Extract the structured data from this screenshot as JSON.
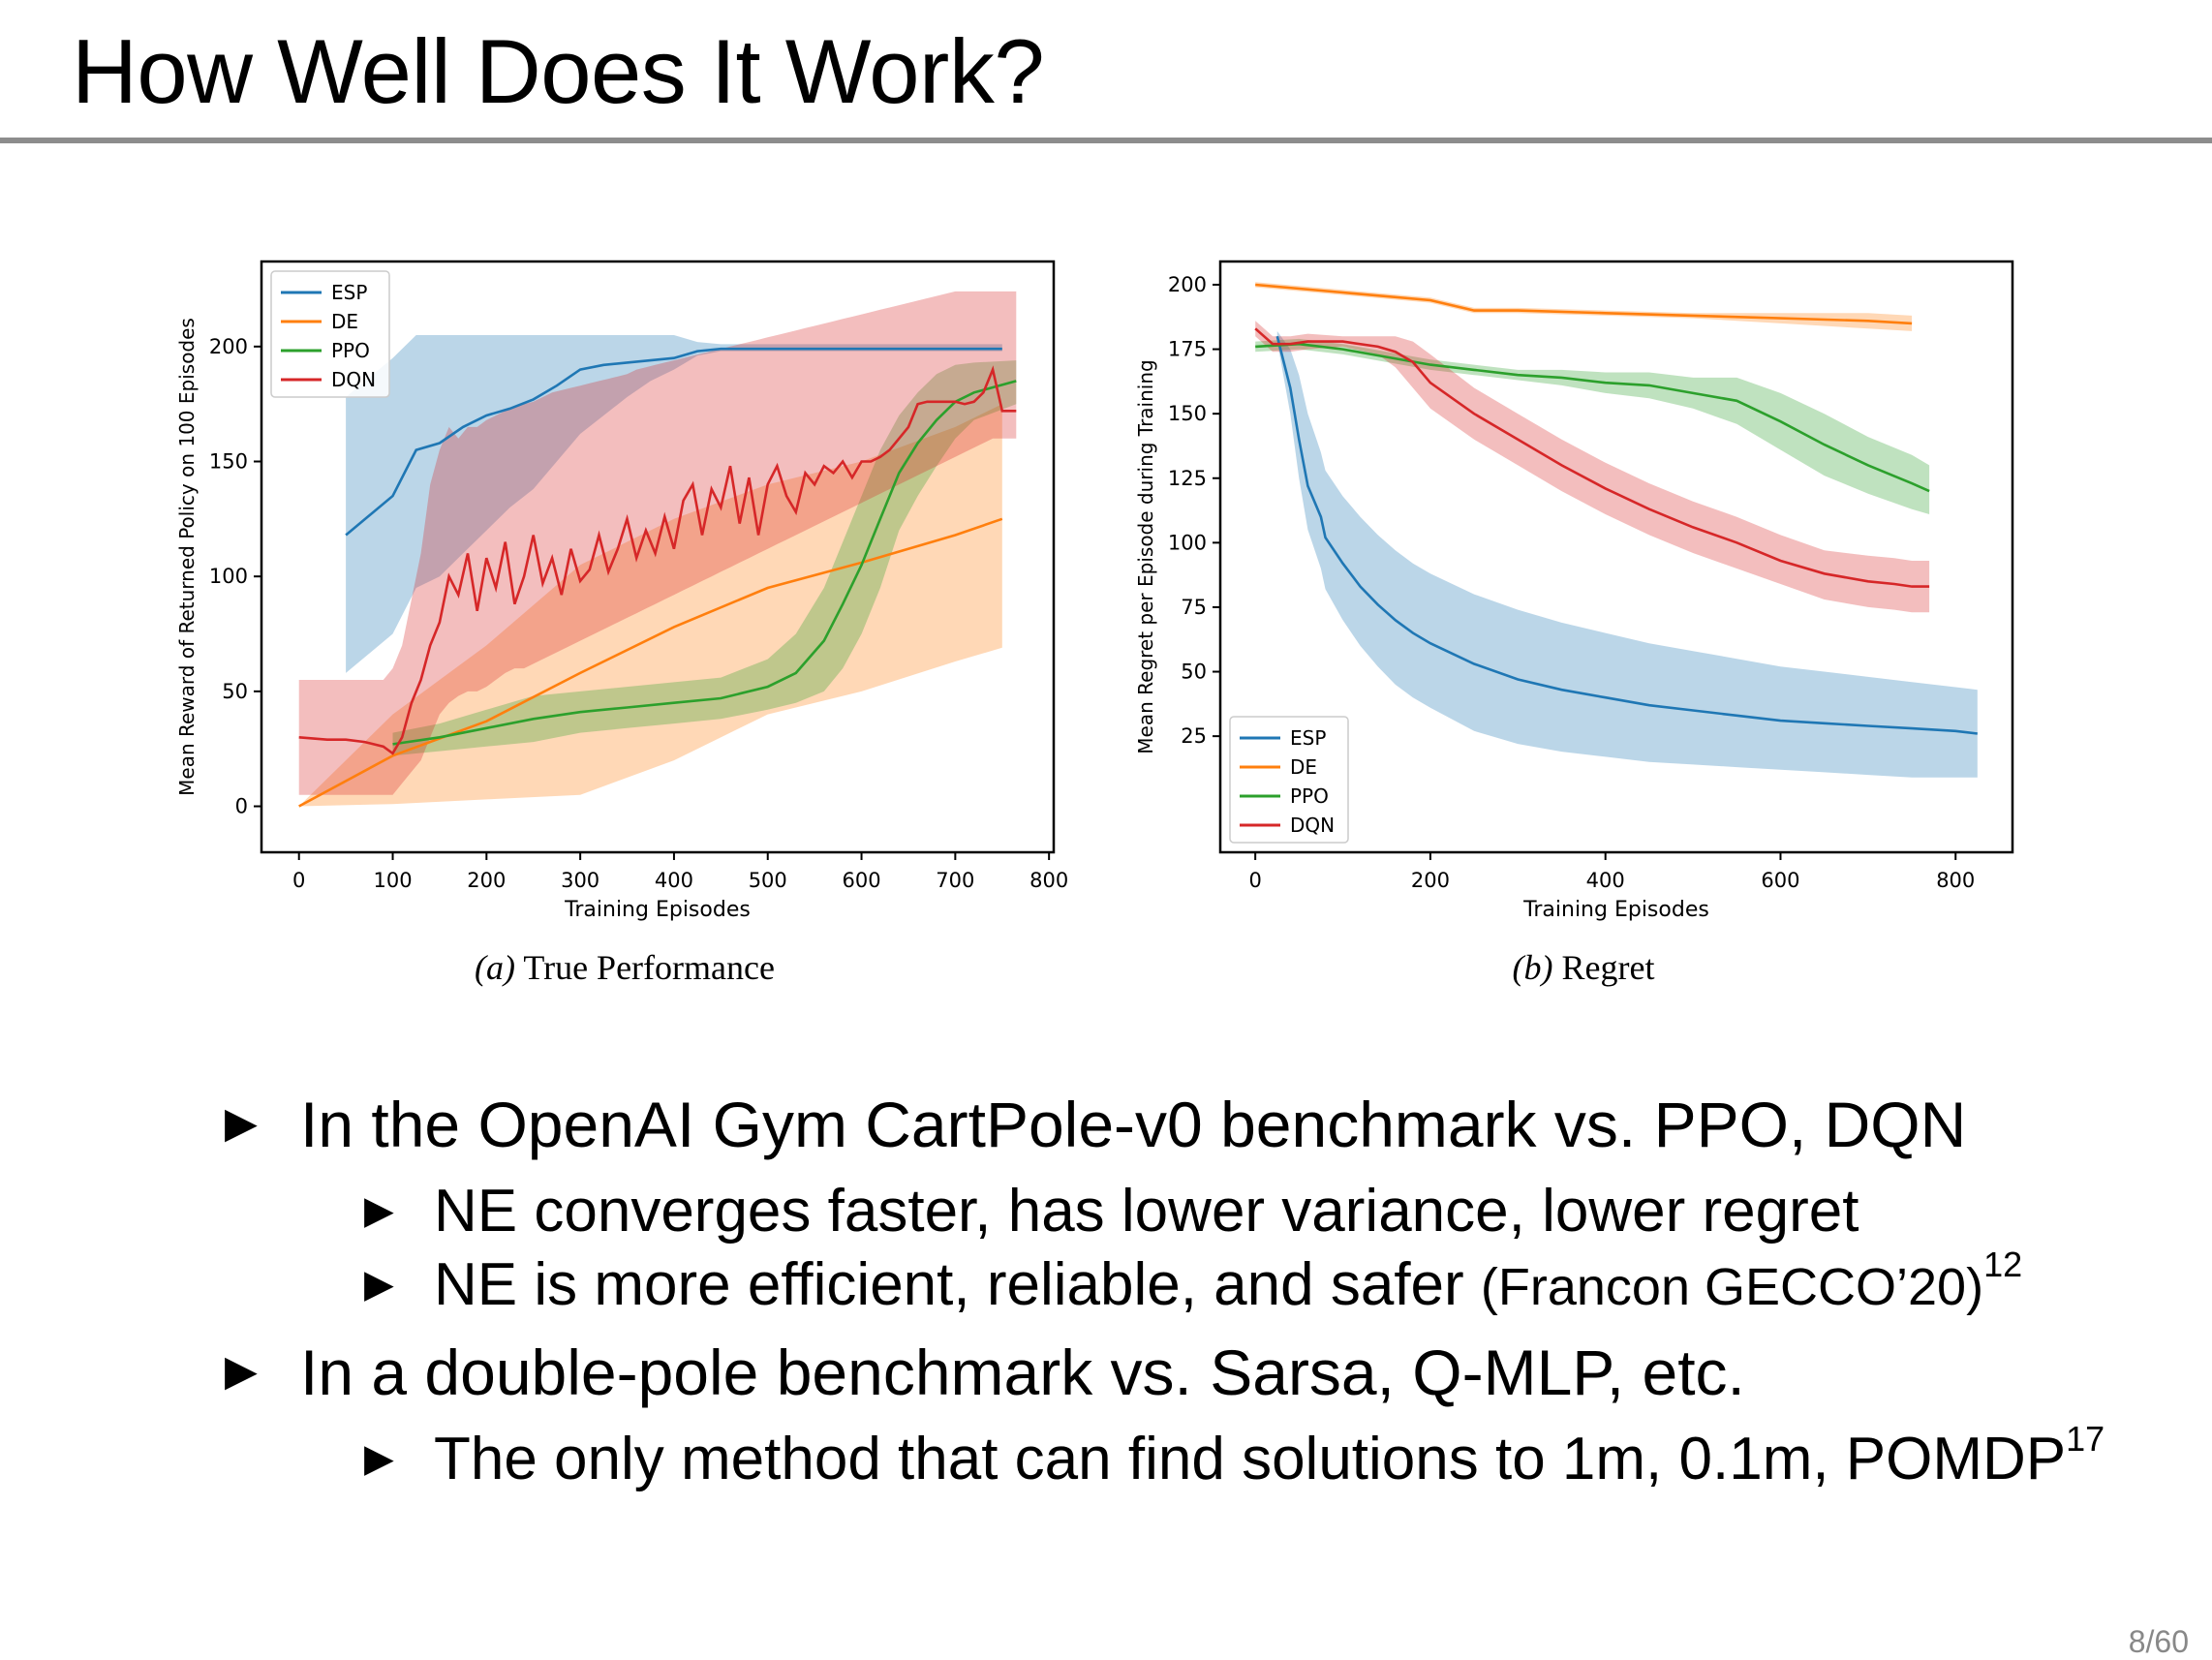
{
  "slide": {
    "title": "How Well Does It Work?",
    "page": "8/60"
  },
  "captions": {
    "a_label": "(a)",
    "a_text": " True Performance",
    "b_label": "(b)",
    "b_text": " Regret"
  },
  "bullets": [
    {
      "text": "In the OpenAI Gym CartPole-v0 benchmark vs. PPO, DQN"
    },
    {
      "text": "NE converges faster, has lower variance, lower regret"
    },
    {
      "text": "NE is more efficient, reliable, and safer ",
      "cite": "(Francon GECCO’20)",
      "sup": "12"
    },
    {
      "text": "In a double-pole benchmark vs. Sarsa, Q-MLP, etc."
    },
    {
      "text": "The only method that can find solutions to 1m, 0.1m, POMDP",
      "sup": "17"
    }
  ],
  "colors": {
    "ESP": "#1f77b4",
    "DE": "#ff7f0e",
    "PPO": "#2ca02c",
    "DQN": "#d62728"
  },
  "chart_data": [
    {
      "type": "line",
      "xlabel": "Training Episodes",
      "ylabel": "Mean Reward of Returned Policy on 100 Episodes",
      "xlim": [
        -40,
        805
      ],
      "ylim": [
        -20,
        237
      ],
      "xticks": [
        0,
        100,
        200,
        300,
        400,
        500,
        600,
        700,
        800
      ],
      "yticks": [
        0,
        50,
        100,
        150,
        200
      ],
      "legend": "top-left",
      "series": [
        {
          "name": "ESP",
          "x": [
            50,
            100,
            125,
            150,
            175,
            200,
            225,
            250,
            275,
            300,
            325,
            350,
            375,
            400,
            425,
            450,
            475,
            500,
            550,
            600,
            650,
            700,
            750
          ],
          "y": [
            118,
            135,
            155,
            158,
            165,
            170,
            173,
            177,
            183,
            190,
            192,
            193,
            194,
            195,
            198,
            199,
            199,
            199,
            199,
            199,
            199,
            199,
            199
          ],
          "lo": [
            58,
            75,
            95,
            100,
            110,
            120,
            130,
            138,
            150,
            162,
            170,
            178,
            185,
            190,
            196,
            198,
            198,
            198,
            198,
            198,
            198,
            198,
            198
          ],
          "hi": [
            178,
            195,
            205,
            205,
            205,
            205,
            205,
            205,
            205,
            205,
            205,
            205,
            205,
            205,
            202,
            201,
            201,
            201,
            201,
            201,
            201,
            201,
            201
          ]
        },
        {
          "name": "DE",
          "x": [
            0,
            100,
            200,
            300,
            400,
            500,
            600,
            700,
            750
          ],
          "y": [
            0,
            22,
            37,
            58,
            78,
            95,
            106,
            118,
            125
          ],
          "lo": [
            0,
            1,
            3,
            5,
            20,
            40,
            50,
            63,
            69
          ],
          "hi": [
            0,
            40,
            70,
            105,
            125,
            140,
            150,
            165,
            175
          ]
        },
        {
          "name": "PPO",
          "x": [
            100,
            150,
            200,
            250,
            300,
            350,
            400,
            450,
            500,
            530,
            560,
            580,
            600,
            620,
            640,
            660,
            680,
            700,
            720,
            765
          ],
          "y": [
            27,
            30,
            34,
            38,
            41,
            43,
            45,
            47,
            52,
            58,
            72,
            88,
            105,
            125,
            145,
            158,
            168,
            176,
            180,
            185
          ],
          "lo": [
            22,
            24,
            26,
            28,
            32,
            34,
            36,
            38,
            42,
            45,
            50,
            60,
            75,
            95,
            120,
            135,
            148,
            160,
            168,
            175
          ],
          "hi": [
            32,
            36,
            42,
            48,
            50,
            52,
            54,
            56,
            64,
            75,
            95,
            115,
            135,
            155,
            170,
            180,
            188,
            192,
            193,
            194
          ]
        },
        {
          "name": "DQN",
          "x": [
            0,
            30,
            50,
            70,
            90,
            100,
            110,
            120,
            130,
            140,
            150,
            160,
            170,
            180,
            190,
            200,
            210,
            220,
            230,
            240,
            250,
            260,
            270,
            280,
            290,
            300,
            310,
            320,
            330,
            340,
            350,
            360,
            370,
            380,
            390,
            400,
            410,
            420,
            430,
            440,
            450,
            460,
            470,
            480,
            490,
            500,
            510,
            520,
            530,
            540,
            550,
            560,
            570,
            580,
            590,
            600,
            610,
            620,
            630,
            640,
            650,
            660,
            670,
            680,
            690,
            700,
            710,
            720,
            730,
            740,
            750,
            765
          ],
          "y": [
            30,
            29,
            29,
            28,
            26,
            23,
            30,
            45,
            55,
            70,
            80,
            100,
            92,
            110,
            85,
            108,
            95,
            115,
            88,
            100,
            118,
            97,
            108,
            92,
            112,
            98,
            103,
            118,
            102,
            112,
            125,
            108,
            120,
            110,
            126,
            112,
            133,
            140,
            118,
            138,
            130,
            148,
            123,
            143,
            118,
            140,
            148,
            135,
            128,
            145,
            140,
            148,
            145,
            150,
            143,
            150,
            150,
            152,
            155,
            160,
            165,
            175,
            176,
            176,
            176,
            176,
            175,
            176,
            180,
            190,
            172,
            172
          ],
          "lo": [
            5,
            5,
            5,
            5,
            5,
            5,
            10,
            15,
            20,
            30,
            40,
            45,
            48,
            50,
            50,
            52,
            55,
            58,
            60,
            60,
            62,
            64,
            66,
            68,
            70,
            72,
            74,
            76,
            78,
            80,
            82,
            84,
            86,
            88,
            90,
            92,
            94,
            96,
            98,
            100,
            102,
            104,
            106,
            108,
            110,
            112,
            114,
            116,
            118,
            120,
            122,
            124,
            126,
            128,
            130,
            132,
            134,
            136,
            138,
            140,
            142,
            144,
            146,
            148,
            150,
            152,
            154,
            156,
            158,
            160,
            160,
            160
          ],
          "hi": [
            55,
            55,
            55,
            55,
            55,
            60,
            70,
            90,
            110,
            140,
            155,
            165,
            160,
            165,
            165,
            168,
            170,
            172,
            174,
            175,
            176,
            178,
            180,
            181,
            182,
            183,
            184,
            185,
            186,
            187,
            188,
            190,
            191,
            192,
            193,
            194,
            195,
            196,
            197,
            198,
            199,
            200,
            201,
            202,
            203,
            204,
            205,
            206,
            207,
            208,
            209,
            210,
            211,
            212,
            213,
            214,
            215,
            216,
            217,
            218,
            219,
            220,
            221,
            222,
            223,
            224,
            224,
            224,
            224,
            224,
            224,
            224
          ]
        }
      ]
    },
    {
      "type": "line",
      "xlabel": "Training Episodes",
      "ylabel": "Mean Regret per Episode during Training",
      "xlim": [
        -40,
        865
      ],
      "ylim": [
        -20,
        209
      ],
      "xticks": [
        0,
        200,
        400,
        600,
        800
      ],
      "yticks": [
        25,
        50,
        75,
        100,
        125,
        150,
        175,
        200
      ],
      "legend": "bottom-left",
      "series": [
        {
          "name": "ESP",
          "x": [
            25,
            40,
            50,
            60,
            75,
            80,
            100,
            120,
            140,
            160,
            180,
            200,
            250,
            300,
            350,
            400,
            450,
            500,
            550,
            600,
            650,
            700,
            750,
            800,
            825
          ],
          "y": [
            180,
            160,
            140,
            122,
            110,
            102,
            92,
            83,
            76,
            70,
            65,
            61,
            53,
            47,
            43,
            40,
            37,
            35,
            33,
            31,
            30,
            29,
            28,
            27,
            26
          ],
          "lo": [
            178,
            150,
            125,
            105,
            90,
            82,
            70,
            60,
            52,
            45,
            40,
            36,
            27,
            22,
            19,
            17,
            15,
            14,
            13,
            12,
            11,
            10,
            9,
            9,
            9
          ],
          "hi": [
            182,
            175,
            165,
            150,
            135,
            128,
            118,
            110,
            103,
            97,
            92,
            88,
            80,
            74,
            69,
            65,
            61,
            58,
            55,
            52,
            50,
            48,
            46,
            44,
            43
          ]
        },
        {
          "name": "DE",
          "x": [
            0,
            100,
            200,
            250,
            300,
            400,
            500,
            600,
            700,
            750
          ],
          "y": [
            200,
            197,
            194,
            190,
            190,
            189,
            188,
            187,
            186,
            185
          ],
          "lo": [
            199,
            196,
            193,
            189,
            189,
            188,
            187,
            185,
            183,
            182
          ],
          "hi": [
            201,
            198,
            195,
            191,
            191,
            190,
            189,
            189,
            189,
            188
          ]
        },
        {
          "name": "PPO",
          "x": [
            0,
            50,
            100,
            150,
            200,
            250,
            300,
            350,
            400,
            450,
            500,
            550,
            600,
            650,
            700,
            750,
            770
          ],
          "y": [
            176,
            177,
            175,
            172,
            169,
            167,
            165,
            164,
            162,
            161,
            158,
            155,
            147,
            138,
            130,
            123,
            120
          ],
          "lo": [
            174,
            175,
            173,
            170,
            167,
            165,
            163,
            161,
            158,
            156,
            152,
            146,
            136,
            126,
            119,
            113,
            111
          ],
          "hi": [
            178,
            179,
            177,
            174,
            171,
            169,
            167,
            167,
            166,
            166,
            164,
            164,
            158,
            150,
            141,
            134,
            130
          ]
        },
        {
          "name": "DQN",
          "x": [
            0,
            20,
            40,
            60,
            100,
            140,
            160,
            180,
            200,
            250,
            300,
            350,
            400,
            450,
            500,
            550,
            600,
            650,
            700,
            730,
            750,
            770
          ],
          "y": [
            183,
            177,
            177,
            178,
            178,
            176,
            174,
            170,
            162,
            150,
            140,
            130,
            121,
            113,
            106,
            100,
            93,
            88,
            85,
            84,
            83,
            83
          ],
          "lo": [
            180,
            174,
            174,
            175,
            176,
            173,
            168,
            160,
            152,
            140,
            130,
            120,
            111,
            103,
            96,
            90,
            84,
            78,
            75,
            74,
            73,
            73
          ],
          "hi": [
            186,
            180,
            180,
            181,
            180,
            180,
            180,
            178,
            173,
            160,
            150,
            140,
            131,
            123,
            116,
            110,
            103,
            97,
            95,
            94,
            93,
            93
          ]
        }
      ]
    }
  ]
}
